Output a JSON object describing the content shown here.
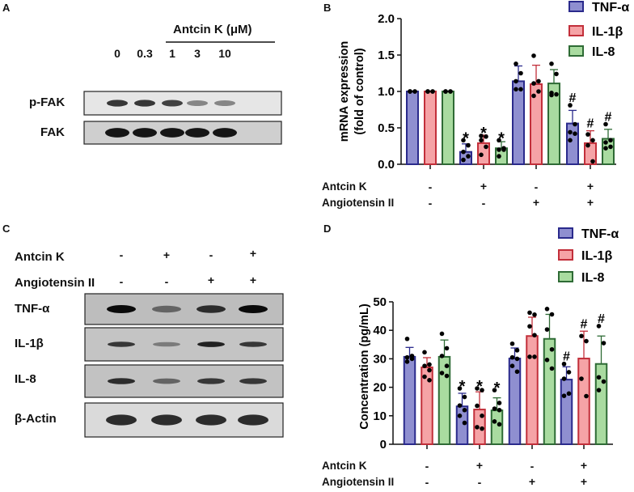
{
  "panels": {
    "a": "A",
    "b": "B",
    "c": "C",
    "d": "D"
  },
  "panel_a": {
    "treatment_label": "Antcin K (μM)",
    "doses": [
      "0",
      "0.3",
      "1",
      "3",
      "10"
    ],
    "blots": [
      {
        "label": "p-FAK",
        "band_intensity": [
          0.8,
          0.8,
          0.75,
          0.45,
          0.45
        ]
      },
      {
        "label": "FAK",
        "band_intensity": [
          0.95,
          0.95,
          0.95,
          0.95,
          0.95
        ]
      }
    ]
  },
  "panel_c": {
    "rows": [
      {
        "label": "Antcin K",
        "signs": [
          "-",
          "+",
          "-",
          "+"
        ]
      },
      {
        "label": "Angiotensin II",
        "signs": [
          "-",
          "-",
          "+",
          "+"
        ]
      }
    ],
    "blots": [
      {
        "label": "TNF-α",
        "band_intensity": [
          1.0,
          0.6,
          0.85,
          1.0
        ]
      },
      {
        "label": "IL-1β",
        "band_intensity": [
          0.8,
          0.5,
          0.9,
          0.8
        ]
      },
      {
        "label": "IL-8",
        "band_intensity": [
          0.85,
          0.6,
          0.8,
          0.8
        ]
      },
      {
        "label": "β-Actin",
        "band_intensity": [
          0.85,
          0.85,
          0.85,
          0.85
        ]
      }
    ]
  },
  "chart_data": [
    {
      "panel": "B",
      "type": "bar",
      "ylabel": [
        "mRNA expression",
        "(fold of control)"
      ],
      "ylim": [
        0,
        2.0
      ],
      "yticks": [
        "0.0",
        "0.5",
        "1.0",
        "1.5",
        "2.0"
      ],
      "legend": "top-right",
      "conditions": [
        {
          "label": "Antcin K",
          "signs": [
            "-",
            "+",
            "-",
            "+"
          ]
        },
        {
          "label": "Angiotensin II",
          "signs": [
            "-",
            "-",
            "+",
            "+"
          ]
        }
      ],
      "series": [
        {
          "name": "TNF-α",
          "fill": "#8f8fd0",
          "stroke": "#2a2a8c",
          "values": [
            1.0,
            0.17,
            1.14,
            0.56
          ],
          "error_upper": [
            1.0,
            0.28,
            1.35,
            0.74
          ],
          "points": [
            [
              1,
              1,
              1,
              1,
              1
            ],
            [
              0.33,
              0.26,
              0.17,
              0.11,
              0.06
            ],
            [
              1.38,
              1.25,
              1.14,
              1.03,
              1.03
            ],
            [
              0.81,
              0.55,
              0.44,
              0.42,
              0.33
            ]
          ],
          "annotations": [
            "",
            "*",
            "",
            "#"
          ]
        },
        {
          "name": "IL-1β",
          "fill": "#f5a3a6",
          "stroke": "#c22f3a",
          "values": [
            1.0,
            0.29,
            1.1,
            0.29
          ],
          "error_upper": [
            1.0,
            0.4,
            1.36,
            0.46
          ],
          "points": [
            [
              1,
              1,
              1,
              1,
              1
            ],
            [
              0.39,
              0.38,
              0.33,
              0.24,
              0.13
            ],
            [
              1.49,
              1.14,
              1.11,
              1.0,
              0.94
            ],
            [
              0.41,
              0.33,
              0.26,
              0.04
            ]
          ],
          "annotations": [
            "",
            "*",
            "",
            "#"
          ]
        },
        {
          "name": "IL-8",
          "fill": "#a9dba0",
          "stroke": "#2e6b35",
          "values": [
            1.0,
            0.22,
            1.11,
            0.35
          ],
          "error_upper": [
            1.0,
            0.31,
            1.3,
            0.48
          ],
          "points": [
            [
              1,
              1,
              1,
              1,
              1
            ],
            [
              0.33,
              0.22,
              0.2,
              0.2,
              0.11
            ],
            [
              1.38,
              1.24,
              0.98,
              0.96,
              0.95
            ],
            [
              0.55,
              0.33,
              0.3,
              0.24,
              0.22
            ]
          ],
          "annotations": [
            "",
            "*",
            "",
            "#"
          ]
        }
      ]
    },
    {
      "panel": "D",
      "type": "bar",
      "ylabel": [
        "Concentration (pg/mL)"
      ],
      "ylim": [
        0,
        50
      ],
      "yticks": [
        "0",
        "10",
        "20",
        "30",
        "40",
        "50"
      ],
      "legend": "top-right",
      "conditions": [
        {
          "label": "Antcin K",
          "signs": [
            "-",
            "+",
            "-",
            "+"
          ]
        },
        {
          "label": "Angiotensin II",
          "signs": [
            "-",
            "-",
            "+",
            "+"
          ]
        }
      ],
      "series": [
        {
          "name": "TNF-α",
          "fill": "#8f8fd0",
          "stroke": "#2a2a8c",
          "values": [
            30.7,
            13.3,
            30.1,
            22.7
          ],
          "error_upper": [
            34.0,
            17.9,
            33.8,
            27.2
          ],
          "points": [
            [
              37,
              31,
              30.5,
              30,
              29
            ],
            [
              19.6,
              16.6,
              13.6,
              12,
              10,
              7.5
            ],
            [
              35.3,
              33,
              30.5,
              30,
              27.5,
              25.5
            ],
            [
              28.2,
              25.3,
              23,
              17.8,
              17
            ]
          ],
          "annotations": [
            "",
            "*",
            "",
            "#"
          ]
        },
        {
          "name": "IL-1β",
          "fill": "#f5a3a6",
          "stroke": "#c22f3a",
          "values": [
            27.0,
            12.2,
            38.0,
            30.1
          ],
          "error_upper": [
            30.4,
            18.4,
            44.6,
            39.7
          ],
          "points": [
            [
              32.3,
              28,
              27.5,
              26,
              23.7,
              22.5
            ],
            [
              19.6,
              19,
              13.5,
              10,
              6,
              5.5
            ],
            [
              46.2,
              45.5,
              41.4,
              38.3,
              30.7,
              30.7
            ],
            [
              38,
              36.2,
              23,
              16.9
            ]
          ],
          "annotations": [
            "",
            "*",
            "",
            "#"
          ]
        },
        {
          "name": "IL-8",
          "fill": "#a9dba0",
          "stroke": "#2e6b35",
          "values": [
            30.7,
            11.9,
            37.0,
            28.2
          ],
          "error_upper": [
            36.6,
            16.3,
            45.6,
            38.0
          ],
          "points": [
            [
              38.8,
              33.7,
              31,
              27.5,
              25,
              24
            ],
            [
              19,
              14.5,
              12.5,
              12,
              8,
              7
            ],
            [
              47.5,
              45.6,
              40.3,
              33.3,
              29.6,
              26.6
            ],
            [
              41.5,
              35.5,
              23.5,
              22,
              19
            ]
          ],
          "annotations": [
            "",
            "*",
            "",
            "#"
          ]
        }
      ]
    }
  ]
}
